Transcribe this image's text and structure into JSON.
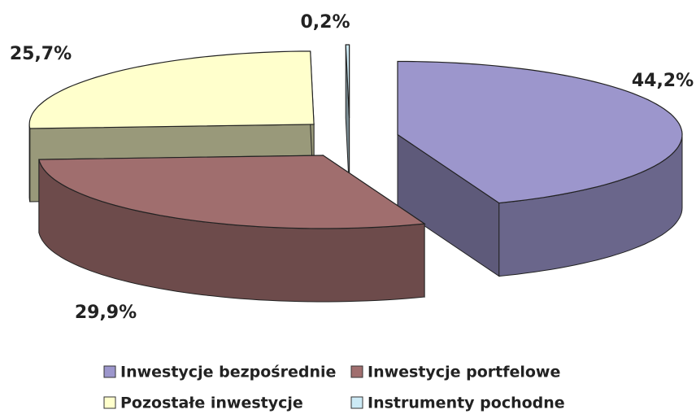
{
  "chart_data": {
    "type": "pie",
    "categories": [
      "Inwestycje bezpośrednie",
      "Inwestycje portfelowe",
      "Pozostałe inwestycje",
      "Instrumenty pochodne"
    ],
    "values": [
      44.2,
      29.9,
      25.7,
      0.2
    ],
    "value_labels": [
      "44,2%",
      "29,9%",
      "25,7%",
      "0,2%"
    ],
    "colors": [
      "#9c96cc",
      "#a06e6e",
      "#ffffcc",
      "#cceaf5"
    ]
  }
}
